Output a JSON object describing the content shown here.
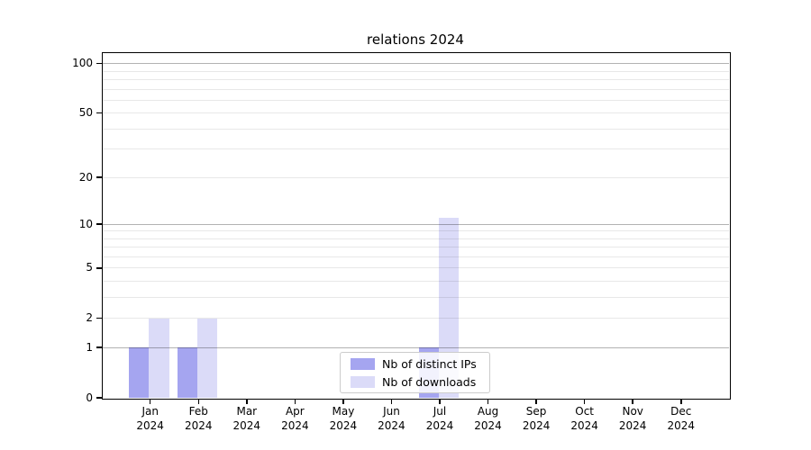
{
  "chart_data": {
    "type": "bar",
    "title": "relations 2024",
    "categories": [
      "Jan",
      "Feb",
      "Mar",
      "Apr",
      "May",
      "Jun",
      "Jul",
      "Aug",
      "Sep",
      "Oct",
      "Nov",
      "Dec"
    ],
    "x_tick_year_line": "2024",
    "series": [
      {
        "name": "Nb of distinct IPs",
        "color": "#a5a5f0",
        "values": [
          1,
          1,
          0,
          0,
          0,
          0,
          1,
          0,
          0,
          0,
          0,
          0
        ]
      },
      {
        "name": "Nb of downloads",
        "color": "#dbdbf8",
        "values": [
          2,
          2,
          0,
          0,
          0,
          0,
          11,
          0,
          0,
          0,
          0,
          0
        ]
      }
    ],
    "y_axis": {
      "scale": "log1p",
      "ylim": [
        0,
        100
      ],
      "tick_values": [
        0,
        1,
        2,
        5,
        10,
        20,
        50,
        100
      ],
      "tick_labels": [
        "0",
        "1",
        "2",
        "5",
        "10",
        "20",
        "50",
        "100"
      ],
      "major_grid_values": [
        1,
        10,
        100
      ],
      "minor_grid_values": [
        2,
        3,
        4,
        5,
        6,
        7,
        8,
        9,
        20,
        30,
        40,
        50,
        60,
        70,
        80,
        90
      ]
    },
    "xlabel": "",
    "ylabel": "",
    "grid": true,
    "legend_position": "lower center"
  }
}
